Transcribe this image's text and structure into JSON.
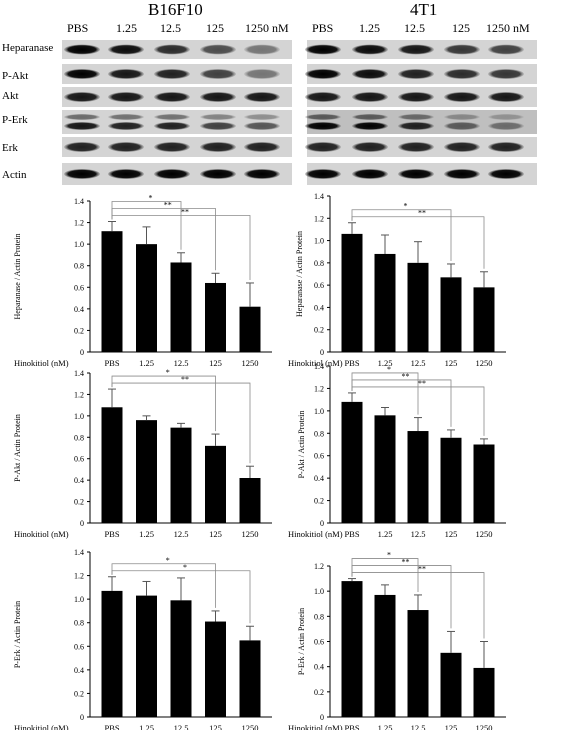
{
  "blot": {
    "panels": [
      {
        "title": "B16F10",
        "lanes": [
          "PBS",
          "1.25",
          "12.5",
          "125",
          "1250 nM"
        ]
      },
      {
        "title": "4T1",
        "lanes": [
          "PBS",
          "1.25",
          "12.5",
          "125",
          "1250 nM"
        ]
      }
    ],
    "proteins": [
      "Heparanase",
      "P-Akt",
      "Akt",
      "P-Erk",
      "Erk",
      "Actin"
    ],
    "band_intensity": {
      "B16F10": {
        "Heparanase": [
          1.0,
          0.95,
          0.8,
          0.65,
          0.45
        ],
        "P-Akt": [
          1.0,
          0.9,
          0.85,
          0.7,
          0.45
        ],
        "Akt": [
          0.9,
          0.9,
          0.9,
          0.9,
          0.9
        ],
        "P-Erk": [
          0.9,
          0.85,
          0.85,
          0.7,
          0.6
        ],
        "Erk": [
          0.85,
          0.85,
          0.85,
          0.85,
          0.85
        ],
        "Actin": [
          1.0,
          1.0,
          1.0,
          1.0,
          1.0
        ]
      },
      "4T1": {
        "Heparanase": [
          1.0,
          0.95,
          0.9,
          0.75,
          0.7
        ],
        "P-Akt": [
          1.0,
          0.95,
          0.85,
          0.8,
          0.75
        ],
        "Akt": [
          0.9,
          0.9,
          0.9,
          0.9,
          0.9
        ],
        "P-Erk": [
          1.0,
          1.0,
          0.85,
          0.55,
          0.45
        ],
        "Erk": [
          0.85,
          0.85,
          0.85,
          0.85,
          0.85
        ],
        "Actin": [
          1.0,
          1.0,
          1.0,
          1.0,
          1.0
        ]
      }
    }
  },
  "chart_data": [
    {
      "id": "b16-heparanase",
      "type": "bar",
      "cell_line": "B16F10",
      "categories": [
        "PBS",
        "1.25",
        "12.5",
        "125",
        "1250"
      ],
      "values": [
        1.12,
        1.0,
        0.83,
        0.64,
        0.42
      ],
      "errors": [
        0.09,
        0.16,
        0.09,
        0.09,
        0.22
      ],
      "ylabel": "Heparanase / Actin Protein",
      "xlabel": "Hinokitiol (nM)",
      "ylim": [
        0,
        1.4
      ],
      "yticks": [
        "0",
        "0.2",
        "0.4",
        "0.6",
        "0.8",
        "1.0",
        "1.2",
        "1.4"
      ],
      "significance": [
        {
          "to": 2,
          "label": "*"
        },
        {
          "to": 3,
          "label": "**"
        },
        {
          "to": 4,
          "label": "**"
        }
      ]
    },
    {
      "id": "4t1-heparanase",
      "type": "bar",
      "cell_line": "4T1",
      "categories": [
        "PBS",
        "1.25",
        "12.5",
        "125",
        "1250"
      ],
      "values": [
        1.06,
        0.88,
        0.8,
        0.67,
        0.58
      ],
      "errors": [
        0.1,
        0.17,
        0.19,
        0.12,
        0.14
      ],
      "ylabel": "Heparanase / Actin Protein",
      "xlabel": "Hinokitiol (nM)",
      "ylim": [
        0,
        1.4
      ],
      "yticks": [
        "0",
        "0.2",
        "0.4",
        "0.6",
        "0.8",
        "1.0",
        "1.2",
        "1.4"
      ],
      "significance": [
        {
          "to": 3,
          "label": "*"
        },
        {
          "to": 4,
          "label": "**"
        }
      ]
    },
    {
      "id": "b16-pakt",
      "type": "bar",
      "cell_line": "B16F10",
      "categories": [
        "PBS",
        "1.25",
        "12.5",
        "125",
        "1250"
      ],
      "values": [
        1.08,
        0.96,
        0.89,
        0.72,
        0.42
      ],
      "errors": [
        0.17,
        0.04,
        0.04,
        0.11,
        0.11
      ],
      "ylabel": "P-Akt / Actin Protein",
      "xlabel": "Hinokitiol (nM)",
      "ylim": [
        0,
        1.4
      ],
      "yticks": [
        "0",
        "0.2",
        "0.4",
        "0.6",
        "0.8",
        "1.0",
        "1.2",
        "1.4"
      ],
      "significance": [
        {
          "to": 3,
          "label": "*"
        },
        {
          "to": 4,
          "label": "**"
        }
      ]
    },
    {
      "id": "4t1-pakt",
      "type": "bar",
      "cell_line": "4T1",
      "categories": [
        "PBS",
        "1.25",
        "12.5",
        "125",
        "1250"
      ],
      "values": [
        1.08,
        0.96,
        0.82,
        0.76,
        0.7
      ],
      "errors": [
        0.08,
        0.07,
        0.12,
        0.07,
        0.05
      ],
      "ylabel": "P-Akt / Actin Protein",
      "xlabel": "Hinokitiol (nM)",
      "ylim": [
        0,
        1.4
      ],
      "yticks": [
        "0",
        "0.2",
        "0.4",
        "0.6",
        "0.8",
        "1.0",
        "1.2",
        "1.4"
      ],
      "significance": [
        {
          "to": 2,
          "label": "*"
        },
        {
          "to": 3,
          "label": "**"
        },
        {
          "to": 4,
          "label": "**"
        }
      ]
    },
    {
      "id": "b16-perk",
      "type": "bar",
      "cell_line": "B16F10",
      "categories": [
        "PBS",
        "1.25",
        "12.5",
        "125",
        "1250"
      ],
      "values": [
        1.07,
        1.03,
        0.99,
        0.81,
        0.65
      ],
      "errors": [
        0.12,
        0.12,
        0.19,
        0.09,
        0.12
      ],
      "ylabel": "P-Erk / Actin Protein",
      "xlabel": "Hinokitiol (nM)",
      "ylim": [
        0,
        1.4
      ],
      "yticks": [
        "0",
        "0.2",
        "0.4",
        "0.6",
        "0.8",
        "1.0",
        "1.2",
        "1.4"
      ],
      "significance": [
        {
          "to": 3,
          "label": "*"
        },
        {
          "to": 4,
          "label": "*"
        }
      ]
    },
    {
      "id": "4t1-perk",
      "type": "bar",
      "cell_line": "4T1",
      "categories": [
        "PBS",
        "1.25",
        "12.5",
        "125",
        "1250"
      ],
      "values": [
        1.08,
        0.97,
        0.85,
        0.51,
        0.39
      ],
      "errors": [
        0.02,
        0.08,
        0.12,
        0.17,
        0.21
      ],
      "ylabel": "P-Erk / Actin Protein",
      "xlabel": "Hinokitiol (nM)",
      "ylim": [
        0,
        1.2
      ],
      "yticks": [
        "0",
        "0.2",
        "0.4",
        "0.6",
        "0.8",
        "1.0",
        "1.2"
      ],
      "significance": [
        {
          "to": 2,
          "label": "*"
        },
        {
          "to": 3,
          "label": "**"
        },
        {
          "to": 4,
          "label": "**"
        }
      ]
    }
  ]
}
